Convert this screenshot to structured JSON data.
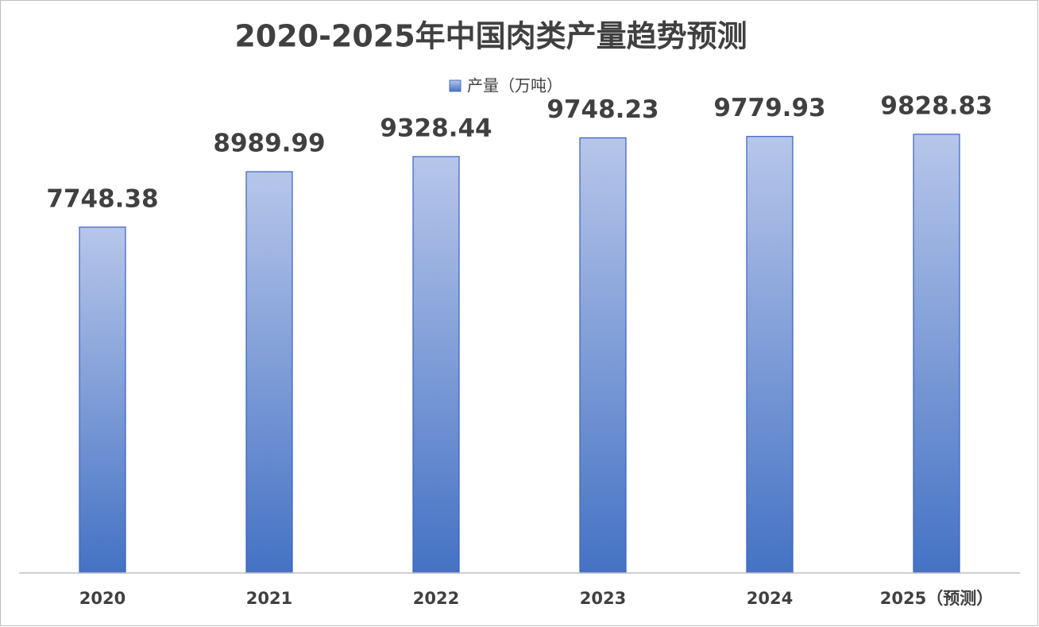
{
  "chart_data": {
    "type": "bar",
    "title": "2020-2025年中国肉类产量趋势预测",
    "categories": [
      "2020",
      "2021",
      "2022",
      "2023",
      "2024",
      "2025（预测）"
    ],
    "series": [
      {
        "name": "产量（万吨）",
        "color": "#4472c4",
        "values": [
          7748.38,
          8989.99,
          9328.44,
          9748.23,
          9779.93,
          9828.83
        ]
      }
    ],
    "ylim": [
      0,
      12000
    ],
    "legend": "top"
  }
}
